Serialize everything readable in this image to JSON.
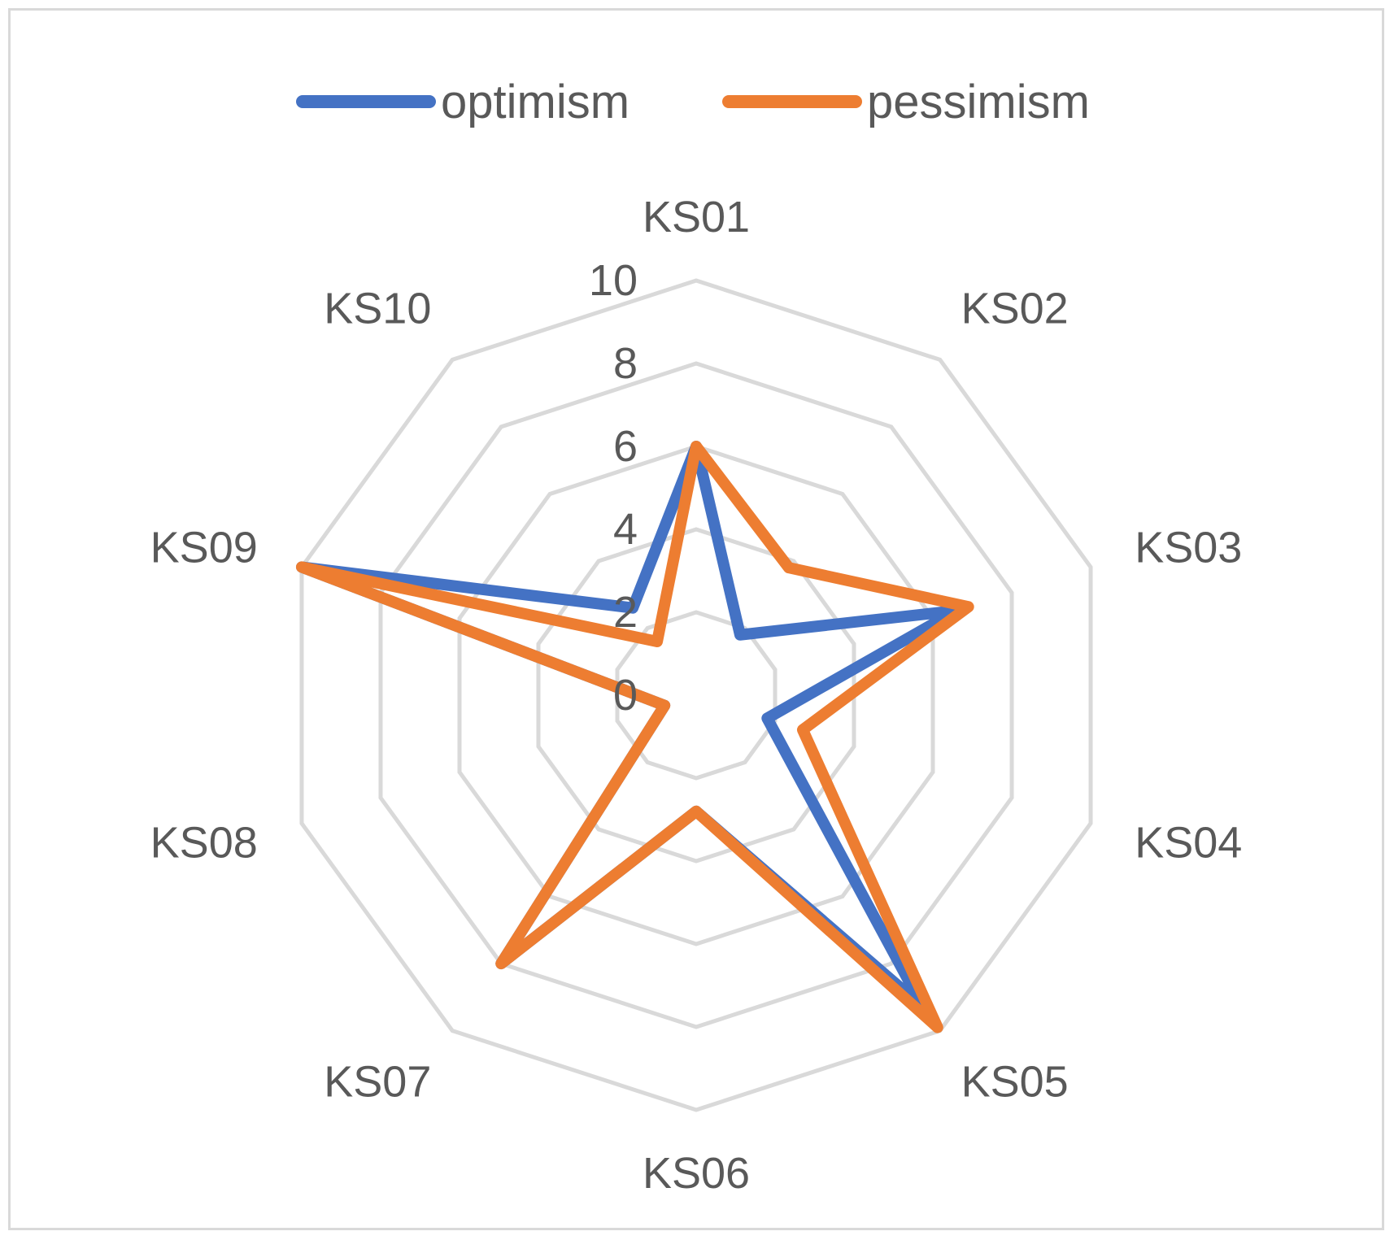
{
  "chart_data": {
    "type": "radar",
    "title": "",
    "categories": [
      "KS01",
      "KS02",
      "KS03",
      "KS04",
      "KS05",
      "KS06",
      "KS07",
      "KS08",
      "KS09",
      "KS10"
    ],
    "series": [
      {
        "name": "optimism",
        "color": "#4472c4",
        "values": [
          6,
          1.8,
          6.6,
          1.8,
          9.3,
          2.8,
          8,
          0.8,
          10,
          2.6
        ]
      },
      {
        "name": "pessimism",
        "color": "#ed7d31",
        "values": [
          6,
          3.8,
          6.9,
          2.7,
          9.9,
          2.8,
          8,
          0.8,
          10,
          1.6
        ]
      }
    ],
    "rlim": [
      0,
      10
    ],
    "ticks": [
      "0",
      "2",
      "4",
      "6",
      "8",
      "10"
    ],
    "grid": true,
    "grid_color": "#d9d9d9",
    "legend": {
      "position": "top"
    }
  }
}
